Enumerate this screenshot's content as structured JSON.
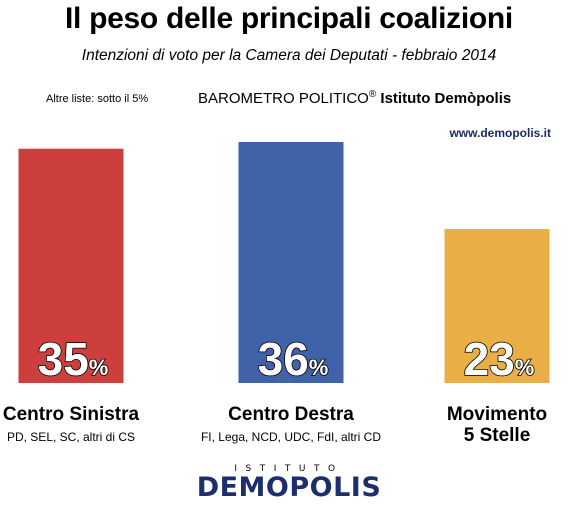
{
  "header": {
    "title": "Il peso delle principali coalizioni",
    "subtitle": "Intenzioni di voto per la Camera dei Deputati - febbraio 2014",
    "note": "Altre liste: sotto il 5%",
    "barometro": "BAROMETRO POLITICO",
    "registered": "®",
    "institute": "Istituto Demòpolis",
    "website": "www.demopolis.it"
  },
  "logo": {
    "top_text": "ISTITUTO",
    "main_text": "DEMOPOLIS"
  },
  "chart_data": {
    "type": "bar",
    "categories": [
      "Centro Sinistra",
      "Centro Destra",
      "Movimento 5 Stelle"
    ],
    "category_lines": [
      [
        "Centro Sinistra"
      ],
      [
        "Centro Destra"
      ],
      [
        "Movimento",
        "5 Stelle"
      ]
    ],
    "subcategories": [
      "PD, SEL, SC, altri di CS",
      "FI, Lega, NCD, UDC, FdI, altri CD",
      ""
    ],
    "values": [
      35,
      36,
      23
    ],
    "value_labels": [
      "35",
      "36",
      "23"
    ],
    "value_suffix": "%",
    "colors": [
      "#cd3f3d",
      "#3f62a9",
      "#e9ae45"
    ],
    "ylim": [
      0,
      36
    ],
    "grid": false,
    "legend": "none"
  }
}
